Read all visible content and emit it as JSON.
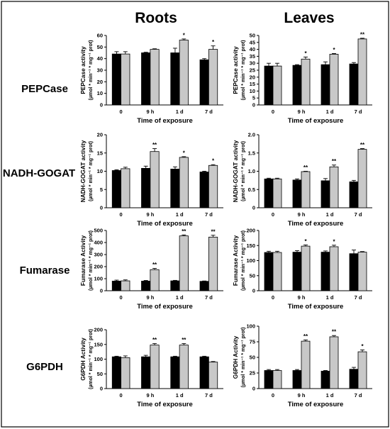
{
  "figure": {
    "columns": [
      "Roots",
      "Leaves"
    ],
    "rows": [
      "PEPCase",
      "NADH-GOGAT",
      "Fumarase",
      "G6PDH"
    ],
    "colors": {
      "control": "#000000",
      "treated": "#c8c8c8",
      "error": "#000000"
    }
  },
  "chart_data": [
    {
      "id": "roots-pepcase",
      "type": "bar",
      "panel": "Roots",
      "enzyme": "PEPCase",
      "categories": [
        "0",
        "9 h",
        "1 d",
        "7 d"
      ],
      "xlabel": "Time of exposure",
      "ylabel": "PEPCase activity",
      "yunit": "(µmol * min⁻¹ * mg⁻¹ prot)",
      "ylim": [
        0,
        60
      ],
      "yticks": [
        0,
        10,
        20,
        30,
        40,
        50,
        60
      ],
      "series": [
        {
          "values": [
            44,
            45,
            45,
            39
          ],
          "errors": [
            2,
            0.5,
            4,
            1
          ]
        },
        {
          "values": [
            44,
            48,
            56,
            48
          ],
          "errors": [
            2,
            0.5,
            1,
            3
          ]
        }
      ],
      "significance": [
        "",
        "",
        "*",
        "*"
      ]
    },
    {
      "id": "leaves-pepcase",
      "type": "bar",
      "panel": "Leaves",
      "enzyme": "PEPCase",
      "categories": [
        "0",
        "9 h",
        "1 d",
        "7 d"
      ],
      "xlabel": "Time of exposure",
      "ylabel": "PEPCase activity",
      "yunit": "(µmol * min⁻¹ * mg⁻¹ prot)",
      "ylim": [
        0,
        50
      ],
      "yticks": [
        0,
        5,
        10,
        15,
        20,
        25,
        30,
        35,
        40,
        45,
        50
      ],
      "series": [
        {
          "values": [
            28,
            28.5,
            29,
            29.5
          ],
          "errors": [
            2,
            0.5,
            2,
            1
          ]
        },
        {
          "values": [
            28,
            33,
            36.5,
            47.5
          ],
          "errors": [
            2,
            1.5,
            0.5,
            0.5
          ]
        }
      ],
      "significance": [
        "",
        "*",
        "*",
        "**"
      ]
    },
    {
      "id": "roots-gogat",
      "type": "bar",
      "panel": "Roots",
      "enzyme": "NADH-GOGAT",
      "categories": [
        "0",
        "9 h",
        "1 d",
        "7 d"
      ],
      "xlabel": "Time of exposure",
      "ylabel": "NADH-GOGAT activity",
      "yunit": "(µmol * min⁻¹ * mg⁻¹ prot)",
      "ylim": [
        0,
        20
      ],
      "yticks": [
        0,
        5,
        10,
        15,
        20
      ],
      "series": [
        {
          "values": [
            10.2,
            10.8,
            10.6,
            9.8
          ],
          "errors": [
            0.2,
            0.6,
            0.6,
            0.2
          ]
        },
        {
          "values": [
            10.7,
            15.4,
            13.8,
            11.6
          ],
          "errors": [
            0.4,
            0.8,
            0.2,
            0.2
          ]
        }
      ],
      "significance": [
        "",
        "**",
        "*",
        "*"
      ]
    },
    {
      "id": "leaves-gogat",
      "type": "bar",
      "panel": "Leaves",
      "enzyme": "NADH-GOGAT",
      "categories": [
        "0",
        "9 h",
        "1 d",
        "7 d"
      ],
      "xlabel": "Time of exposure",
      "ylabel": "NADH-GOGAT activity",
      "yunit": "(µmol * min⁻¹ * mg⁻¹ prot)",
      "ylim": [
        0,
        2.0
      ],
      "yticks": [
        0,
        0.5,
        1.0,
        1.5,
        2.0
      ],
      "ytick_labels": [
        "0",
        "0.5",
        "1.0",
        "1.5",
        "2.0"
      ],
      "series": [
        {
          "values": [
            0.79,
            0.76,
            0.74,
            0.71
          ],
          "errors": [
            0.02,
            0.03,
            0.06,
            0.04
          ]
        },
        {
          "values": [
            0.79,
            0.99,
            1.12,
            1.6
          ],
          "errors": [
            0.02,
            0.01,
            0.05,
            0.02
          ]
        }
      ],
      "significance": [
        "",
        "**",
        "**",
        "**"
      ]
    },
    {
      "id": "roots-fumarase",
      "type": "bar",
      "panel": "Roots",
      "enzyme": "Fumarase",
      "categories": [
        "0",
        "9 h",
        "1 d",
        "7 d"
      ],
      "xlabel": "Time of exposure",
      "ylabel": "Fumarase Activity",
      "yunit": "(µmol * min⁻¹ * mg⁻¹ prot)",
      "ylim": [
        0,
        500
      ],
      "yticks": [
        0,
        100,
        200,
        300,
        400,
        500
      ],
      "series": [
        {
          "values": [
            80,
            80,
            82,
            78
          ],
          "errors": [
            8,
            5,
            4,
            3
          ]
        },
        {
          "values": [
            82,
            175,
            455,
            445
          ],
          "errors": [
            8,
            10,
            8,
            15
          ]
        }
      ],
      "significance": [
        "",
        "**",
        "**",
        "**"
      ]
    },
    {
      "id": "leaves-fumarase",
      "type": "bar",
      "panel": "Leaves",
      "enzyme": "Fumarase",
      "categories": [
        "0",
        "9 h",
        "1 d",
        "7 d"
      ],
      "xlabel": "Time of exposure",
      "ylabel": "Fumarase Activity",
      "yunit": "(µmol * min⁻¹ * mg⁻¹ prot)",
      "ylim": [
        0,
        200
      ],
      "yticks": [
        0,
        50,
        100,
        150,
        200
      ],
      "series": [
        {
          "values": [
            127,
            128,
            128,
            123
          ],
          "errors": [
            4,
            5,
            4,
            12
          ]
        },
        {
          "values": [
            127,
            148,
            146,
            128
          ],
          "errors": [
            4,
            4,
            5,
            2
          ]
        }
      ],
      "significance": [
        "",
        "*",
        "*",
        ""
      ]
    },
    {
      "id": "roots-g6pdh",
      "type": "bar",
      "panel": "Roots",
      "enzyme": "G6PDH",
      "categories": [
        "0",
        "9 h",
        "1 d",
        "7 d"
      ],
      "xlabel": "Time of exposure",
      "ylabel": "G6PDH Activity",
      "yunit": "(µmol * min⁻¹ * mg⁻¹ prot)",
      "ylim": [
        0,
        200
      ],
      "yticks": [
        0,
        50,
        100,
        150,
        200
      ],
      "series": [
        {
          "values": [
            108,
            108,
            108,
            108
          ],
          "errors": [
            2,
            5,
            2,
            2
          ]
        },
        {
          "values": [
            105,
            148,
            148,
            90
          ],
          "errors": [
            6,
            5,
            5,
            2
          ]
        }
      ],
      "significance": [
        "",
        "**",
        "**",
        ""
      ]
    },
    {
      "id": "leaves-g6pdh",
      "type": "bar",
      "panel": "Leaves",
      "enzyme": "G6PDH",
      "categories": [
        "0",
        "9 h",
        "1 d",
        "7 d"
      ],
      "xlabel": "Time of exposure",
      "ylabel": "G6PDH Activity",
      "yunit": "(µmol * min⁻¹ * mg⁻¹ prot)",
      "ylim": [
        0,
        100
      ],
      "yticks": [
        0,
        25,
        50,
        75,
        100
      ],
      "series": [
        {
          "values": [
            29,
            29,
            28,
            31
          ],
          "errors": [
            1.5,
            1.5,
            1,
            3
          ]
        },
        {
          "values": [
            29,
            76,
            83,
            59
          ],
          "errors": [
            1.5,
            2,
            2,
            3
          ]
        }
      ],
      "significance": [
        "",
        "**",
        "**",
        "*"
      ]
    }
  ]
}
